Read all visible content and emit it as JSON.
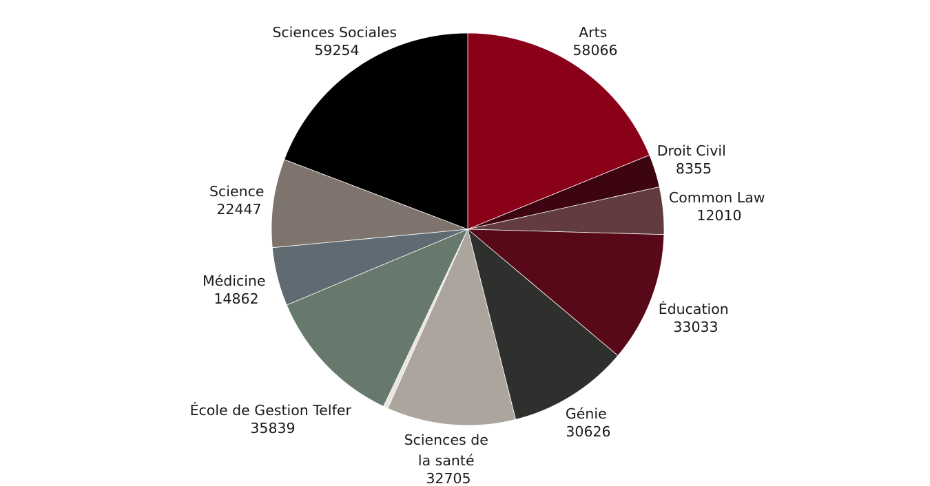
{
  "chart_data": {
    "type": "pie",
    "title": "",
    "legend": "none",
    "slices": [
      {
        "label": "Arts",
        "value": 58066,
        "value_text": "58066",
        "color": "#8b0019"
      },
      {
        "label": "Droit Civil",
        "value": 8355,
        "value_text": "8355",
        "color": "#3d0510"
      },
      {
        "label": "Common Law",
        "value": 12010,
        "value_text": "12010",
        "color": "#623b40"
      },
      {
        "label": "Éducation",
        "value": 33033,
        "value_text": "33033",
        "color": "#570917"
      },
      {
        "label": "Génie",
        "value": 30626,
        "value_text": "30626",
        "color": "#2f2f2d"
      },
      {
        "label": "Sciences de la santé",
        "value": 32705,
        "value_text": "32705",
        "color": "#aca59e"
      },
      {
        "label": "",
        "value": 1200,
        "value_text": "",
        "color": "#e8e4e0"
      },
      {
        "label": "École de Gestion Telfer",
        "value": 35839,
        "value_text": "35839",
        "color": "#66796c"
      },
      {
        "label": "Médicine",
        "value": 14862,
        "value_text": "14862",
        "color": "#5f6a73"
      },
      {
        "label": "Science",
        "value": 22447,
        "value_text": "22447",
        "color": "#7e746d"
      },
      {
        "label": "Sciences Sociales",
        "value": 59254,
        "value_text": "59254",
        "color": "#000000"
      }
    ]
  }
}
